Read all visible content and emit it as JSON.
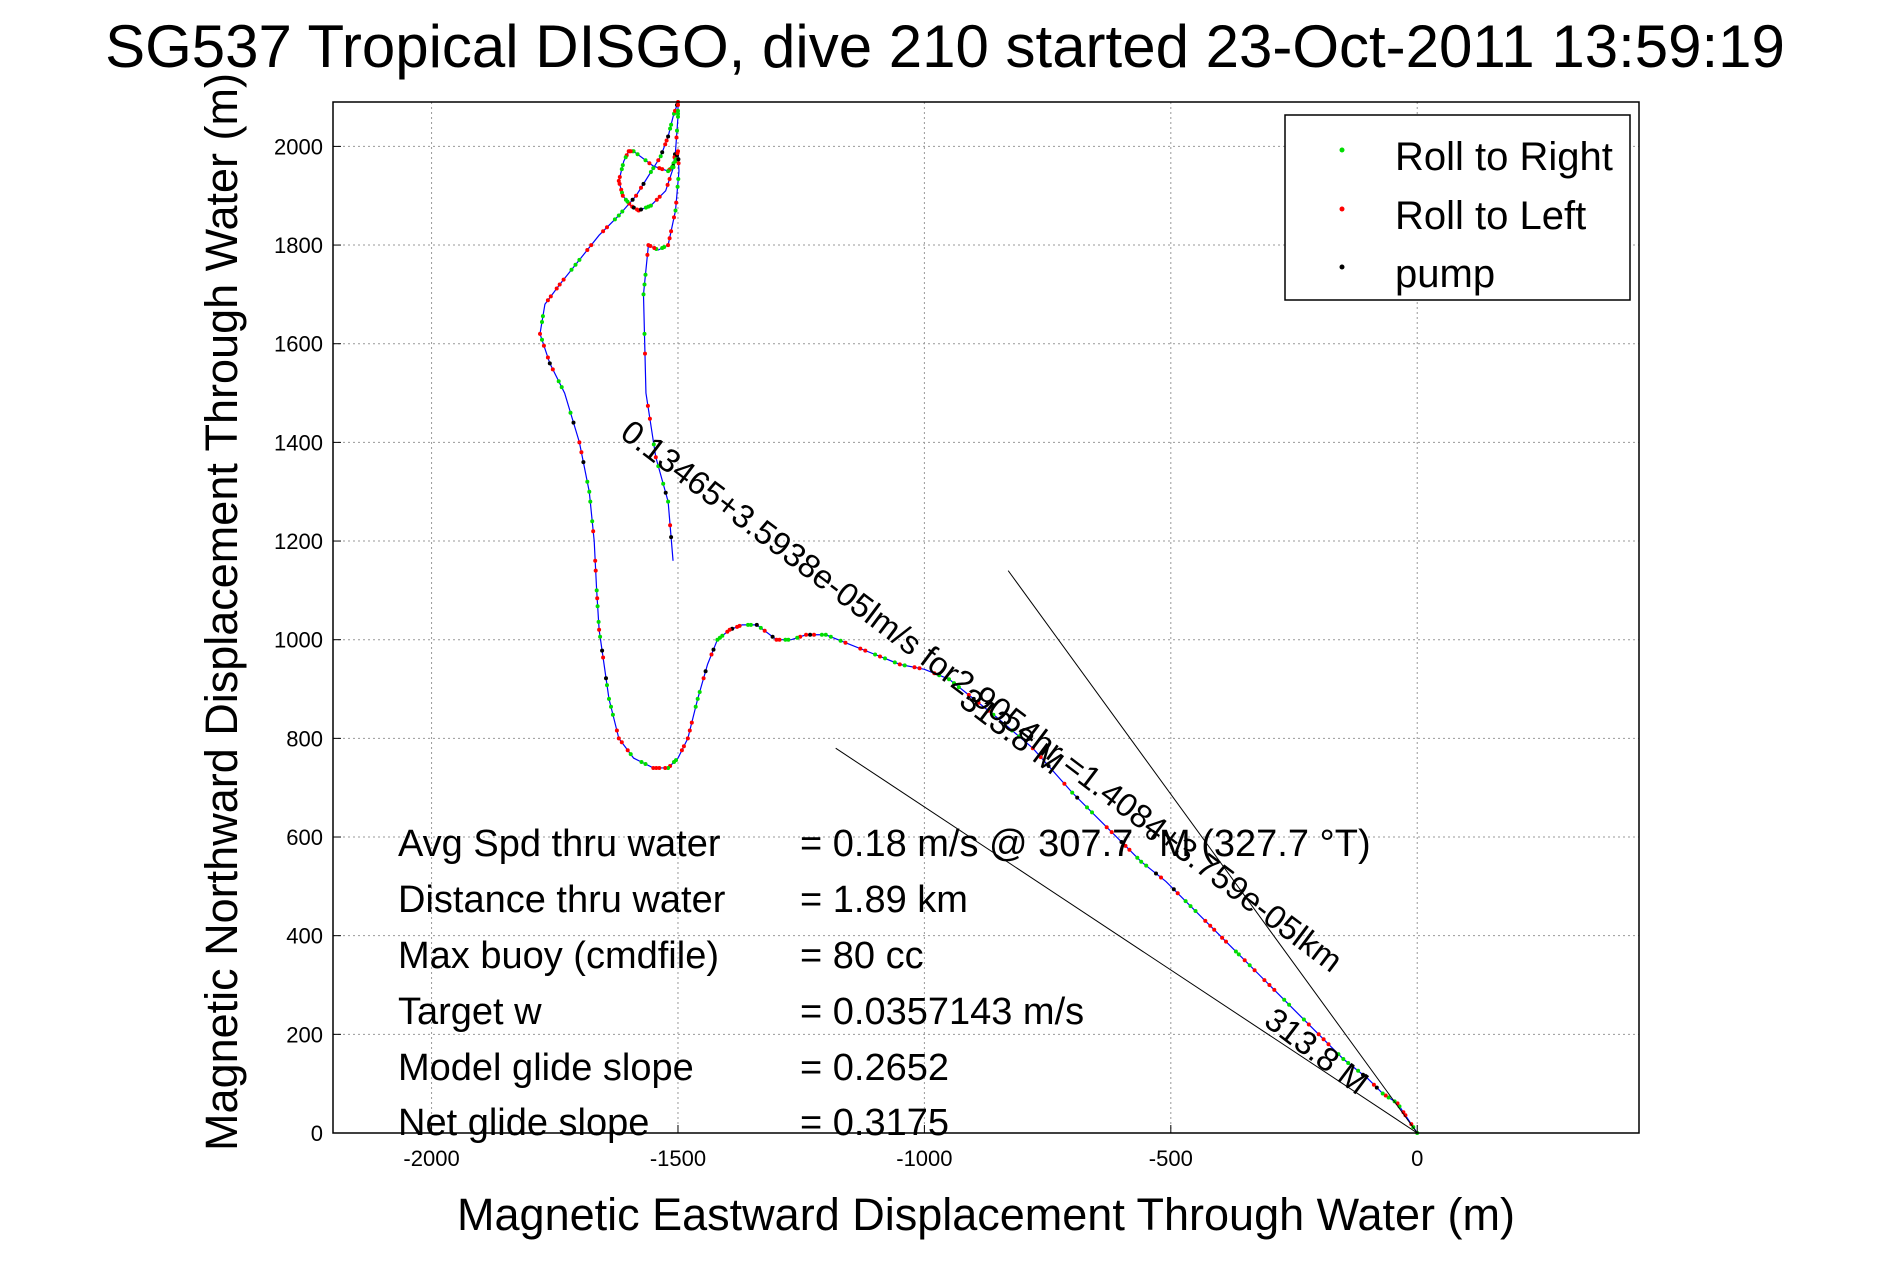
{
  "chart_data": {
    "type": "scatter",
    "title": "SG537 Tropical DISGO, dive 210 started 23-Oct-2011 13:59:19",
    "xlabel": "Magnetic Eastward Displacement Through Water (m)",
    "ylabel": "Magnetic Northward Displacement Through Water (m)",
    "xlim": [
      -2200,
      450
    ],
    "ylim": [
      0,
      2090
    ],
    "xticks": [
      -2000,
      -1500,
      -1000,
      -500,
      0
    ],
    "yticks": [
      0,
      200,
      400,
      600,
      800,
      1000,
      1200,
      1400,
      1600,
      1800,
      2000
    ],
    "grid": true,
    "legend_position": "top-right",
    "series": [
      {
        "name": "Roll to Right",
        "color": "#00dd00"
      },
      {
        "name": "Roll to Left",
        "color": "#ff0000"
      },
      {
        "name": "pump",
        "color": "#000000"
      }
    ],
    "track_color": "#0000ff",
    "track": {
      "x": [
        0,
        -20,
        -40,
        -70,
        -100,
        -150,
        -200,
        -250,
        -300,
        -350,
        -380,
        -420,
        -470,
        -510,
        -560,
        -600,
        -650,
        -700,
        -780,
        -850,
        -900,
        -950,
        -1000,
        -1050,
        -1100,
        -1150,
        -1200,
        -1240,
        -1270,
        -1300,
        -1340,
        -1370,
        -1395,
        -1420,
        -1440,
        -1460,
        -1480,
        -1500,
        -1520,
        -1550,
        -1590,
        -1620,
        -1640,
        -1650,
        -1660,
        -1665,
        -1670,
        -1680,
        -1700,
        -1730,
        -1760,
        -1780,
        -1770,
        -1740,
        -1700,
        -1660,
        -1620,
        -1585,
        -1560,
        -1535,
        -1520,
        -1510,
        -1500,
        -1500,
        -1505,
        -1510,
        -1520,
        -1550,
        -1590,
        -1600,
        -1610,
        -1620,
        -1612,
        -1596,
        -1580,
        -1555,
        -1525,
        -1505,
        -1500,
        -1498,
        -1505,
        -1520,
        -1540,
        -1560,
        -1570,
        -1565,
        -1545,
        -1520,
        -1510
      ],
      "y": [
        0,
        30,
        60,
        80,
        110,
        150,
        200,
        250,
        300,
        350,
        380,
        420,
        470,
        510,
        550,
        590,
        640,
        690,
        780,
        840,
        880,
        920,
        940,
        950,
        970,
        990,
        1010,
        1010,
        1000,
        1000,
        1030,
        1030,
        1020,
        1000,
        950,
        880,
        800,
        760,
        740,
        740,
        760,
        800,
        880,
        950,
        1020,
        1100,
        1200,
        1300,
        1400,
        1500,
        1560,
        1620,
        1680,
        1720,
        1770,
        1820,
        1860,
        1900,
        1940,
        1980,
        2020,
        2060,
        2090,
        2060,
        1990,
        1960,
        1950,
        1960,
        1990,
        1990,
        1970,
        1930,
        1900,
        1880,
        1870,
        1880,
        1910,
        1970,
        1990,
        1950,
        1870,
        1800,
        1790,
        1800,
        1700,
        1500,
        1370,
        1280,
        1160
      ]
    },
    "lines": [
      {
        "from": [
          0,
          0
        ],
        "to": [
          -830,
          1140
        ]
      },
      {
        "from": [
          0,
          0
        ],
        "to": [
          -1180,
          780
        ]
      }
    ],
    "annotations": [
      "0.13465+3.5938e-05lm/s for2.9054hr =1.4084+3.759e-05lkm",
      "313.8 M",
      "313.8 M"
    ]
  },
  "legend": {
    "items": [
      "Roll to Right",
      "Roll to Left",
      "pump"
    ]
  },
  "stats": [
    {
      "label": "Avg Spd thru water",
      "value": "=  0.18 m/s @ 307.7 °M (327.7 °T)"
    },
    {
      "label": "Distance thru water",
      "value": "=  1.89 km"
    },
    {
      "label": "Max buoy (cmdfile)",
      "value": "= 80 cc"
    },
    {
      "label": "Target w",
      "value": "= 0.0357143 m/s"
    },
    {
      "label": "Model glide slope",
      "value": "= 0.2652"
    },
    {
      "label": "Net glide slope",
      "value": "= 0.3175"
    }
  ]
}
